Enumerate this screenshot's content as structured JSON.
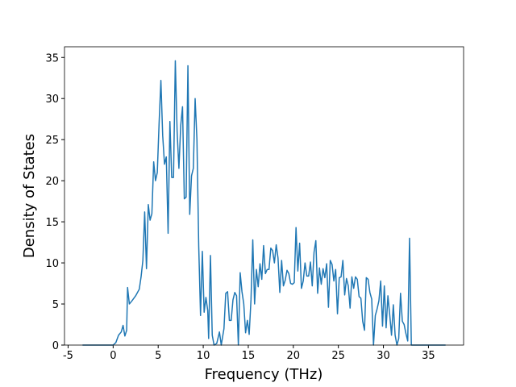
{
  "chart_data": {
    "type": "line",
    "x_label": "Frequency (THz)",
    "y_label": "Density of States",
    "xlim": [
      -5.4,
      38.9
    ],
    "ylim": [
      0,
      36.3
    ],
    "xticks": [
      -5,
      0,
      5,
      10,
      15,
      20,
      25,
      30,
      35
    ],
    "yticks": [
      0,
      5,
      10,
      15,
      20,
      25,
      30,
      35
    ],
    "series": [
      {
        "color": "#1f77b4",
        "x": [
          -3.4,
          0,
          0.3,
          0.6,
          0.9,
          1.1,
          1.3,
          1.5,
          1.6,
          1.8,
          2.1,
          2.5,
          2.9,
          3.1,
          3.3,
          3.5,
          3.7,
          3.9,
          4.1,
          4.3,
          4.5,
          4.7,
          4.9,
          5.1,
          5.3,
          5.5,
          5.7,
          5.9,
          6.1,
          6.3,
          6.5,
          6.7,
          6.9,
          7.1,
          7.3,
          7.5,
          7.7,
          7.9,
          8.1,
          8.3,
          8.5,
          8.7,
          8.9,
          9.1,
          9.3,
          9.5,
          9.7,
          9.9,
          10.1,
          10.3,
          10.5,
          10.6,
          10.8,
          11.0,
          11.2,
          11.5,
          11.8,
          12.0,
          12.3,
          12.5,
          12.7,
          12.9,
          13.1,
          13.3,
          13.5,
          13.7,
          13.9,
          14.1,
          14.3,
          14.5,
          14.7,
          14.9,
          15.1,
          15.3,
          15.5,
          15.7,
          15.9,
          16.1,
          16.3,
          16.5,
          16.7,
          16.9,
          17.1,
          17.3,
          17.5,
          17.7,
          17.9,
          18.1,
          18.3,
          18.5,
          18.7,
          18.9,
          19.1,
          19.3,
          19.5,
          19.7,
          19.9,
          20.1,
          20.3,
          20.5,
          20.7,
          20.9,
          21.1,
          21.3,
          21.5,
          21.7,
          21.9,
          22.1,
          22.3,
          22.5,
          22.7,
          22.9,
          23.1,
          23.3,
          23.5,
          23.7,
          23.9,
          24.1,
          24.3,
          24.5,
          24.7,
          24.9,
          25.1,
          25.3,
          25.5,
          25.7,
          25.9,
          26.1,
          26.3,
          26.5,
          26.7,
          26.9,
          27.1,
          27.3,
          27.5,
          27.7,
          27.9,
          28.1,
          28.3,
          28.5,
          28.7,
          28.9,
          29.1,
          29.3,
          29.5,
          29.7,
          29.9,
          30.1,
          30.3,
          30.5,
          30.7,
          30.9,
          31.1,
          31.3,
          31.5,
          31.7,
          31.9,
          32.1,
          32.3,
          32.5,
          32.7,
          32.9,
          33.1,
          36.9
        ],
        "values": [
          0,
          0,
          0.3,
          1.2,
          1.6,
          2.4,
          1.1,
          1.8,
          7.0,
          5.0,
          5.4,
          6.0,
          6.8,
          8.3,
          10.3,
          16.2,
          9.3,
          17.1,
          15.2,
          16.0,
          22.3,
          20.0,
          21.0,
          27.0,
          32.2,
          25.5,
          22.0,
          22.9,
          13.6,
          27.2,
          20.4,
          20.4,
          34.6,
          26.0,
          21.5,
          26.7,
          29.0,
          17.8,
          18.0,
          34.0,
          15.9,
          20.6,
          21.5,
          30.0,
          25.0,
          12.0,
          3.6,
          11.4,
          4.0,
          5.8,
          4.2,
          0.8,
          10.9,
          1.2,
          0,
          0.2,
          1.6,
          0,
          2.0,
          6.3,
          6.5,
          3.0,
          3.0,
          5.5,
          6.4,
          6.0,
          0,
          8.8,
          6.5,
          5.0,
          1.5,
          3.0,
          1.3,
          5.5,
          12.8,
          5.0,
          9.2,
          7.1,
          9.9,
          8.0,
          12.1,
          8.7,
          9.2,
          9.2,
          11.8,
          11.5,
          10.0,
          12.2,
          10.6,
          6.4,
          10.3,
          7.2,
          7.9,
          9.1,
          8.7,
          7.5,
          7.4,
          7.6,
          14.3,
          9.0,
          12.4,
          6.9,
          7.8,
          10.0,
          8.4,
          8.4,
          10.1,
          7.2,
          11.3,
          12.7,
          6.3,
          9.4,
          7.4,
          9.3,
          8.2,
          9.9,
          4.6,
          10.3,
          9.8,
          7.8,
          9.2,
          3.8,
          8.2,
          8.3,
          10.3,
          6.1,
          8.1,
          7.2,
          4.5,
          8.3,
          6.9,
          8.3,
          8.0,
          5.9,
          5.7,
          2.9,
          1.8,
          8.2,
          8.0,
          6.4,
          5.6,
          0,
          3.6,
          4.4,
          5.4,
          7.8,
          2.3,
          7.2,
          2.1,
          6.0,
          3.7,
          1.2,
          4.9,
          1.2,
          0,
          0.8,
          6.3,
          2.9,
          2.5,
          1.4,
          0.5,
          13.0,
          0,
          0
        ]
      }
    ]
  }
}
